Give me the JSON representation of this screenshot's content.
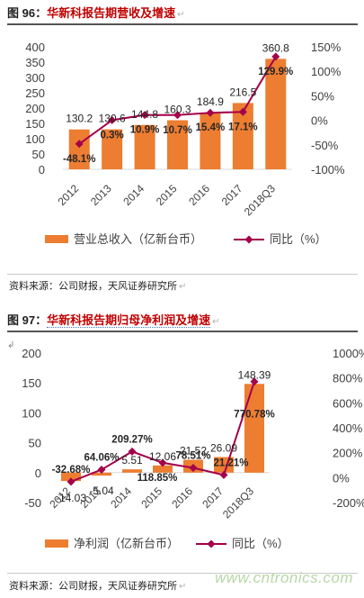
{
  "figures": [
    {
      "title_num": "图 96：",
      "title_name": "华新科报告期营收及增速",
      "source": "资料来源：公司财报，天风证券研究所"
    },
    {
      "title_num": "图 97：",
      "title_name": "华新科报告期归母净利润及增速",
      "source": "资料来源：公司财报，天风证券研究所"
    }
  ],
  "para_mark": "↵",
  "stray_mark": "↲",
  "watermark": "www.cntronics.com",
  "colors": {
    "bar": "#ed7d31",
    "line": "#a5004a",
    "title": "#c00000",
    "axis_text": "#404040"
  },
  "chart_data": [
    {
      "type": "bar",
      "categories": [
        "2012",
        "2013",
        "2014",
        "2015",
        "2016",
        "2017",
        "2018Q3"
      ],
      "series": [
        {
          "name": "营业总收入（亿新台币）",
          "type": "bar",
          "axis": "left",
          "values": [
            130.2,
            130.6,
            144.8,
            160.3,
            184.9,
            216.5,
            360.8
          ],
          "labels": [
            "130.2",
            "130.6",
            "144.8",
            "160.3",
            "184.9",
            "216.5",
            "360.8"
          ]
        },
        {
          "name": "同比（%）",
          "type": "line",
          "axis": "right",
          "values": [
            -48.1,
            0.3,
            10.9,
            10.7,
            15.4,
            17.1,
            129.9
          ],
          "labels": [
            "-48.1%",
            "0.3%",
            "10.9%",
            "10.7%",
            "15.4%",
            "17.1%",
            "129.9%"
          ]
        }
      ],
      "ylim_left": [
        0,
        400
      ],
      "yticks_left": [
        "0",
        "50",
        "100",
        "150",
        "200",
        "250",
        "300",
        "350",
        "400"
      ],
      "ylim_right": [
        -100,
        150
      ],
      "yticks_right": [
        "-100%",
        "-50%",
        "0%",
        "50%",
        "100%",
        "150%"
      ],
      "legend": "bottom"
    },
    {
      "type": "bar",
      "categories": [
        "2012",
        "2013",
        "2014",
        "2015",
        "2016",
        "2017",
        "2018Q3"
      ],
      "series": [
        {
          "name": "净利润（亿新台币）",
          "type": "bar",
          "axis": "left",
          "values": [
            -14.03,
            -5.04,
            5.51,
            12.06,
            21.52,
            26.09,
            148.39
          ],
          "labels": [
            "-14.03",
            "-5.04",
            "5.51",
            "12.06",
            "21.52",
            "26.09",
            "148.39"
          ]
        },
        {
          "name": "同比（%）",
          "type": "line",
          "axis": "right",
          "values": [
            -32.68,
            64.06,
            209.27,
            118.85,
            78.51,
            21.21,
            770.78
          ],
          "labels": [
            "-32.68%",
            "64.06%",
            "209.27%",
            "118.85%",
            "78.51%",
            "21.21%",
            "770.78%"
          ]
        }
      ],
      "ylim_left": [
        -50,
        200
      ],
      "yticks_left": [
        "-50",
        "0",
        "50",
        "100",
        "150",
        "200"
      ],
      "ylim_right": [
        -200,
        1000
      ],
      "yticks_right": [
        "-200%",
        "0%",
        "200%",
        "400%",
        "600%",
        "800%",
        "1000%"
      ],
      "legend": "bottom"
    }
  ]
}
